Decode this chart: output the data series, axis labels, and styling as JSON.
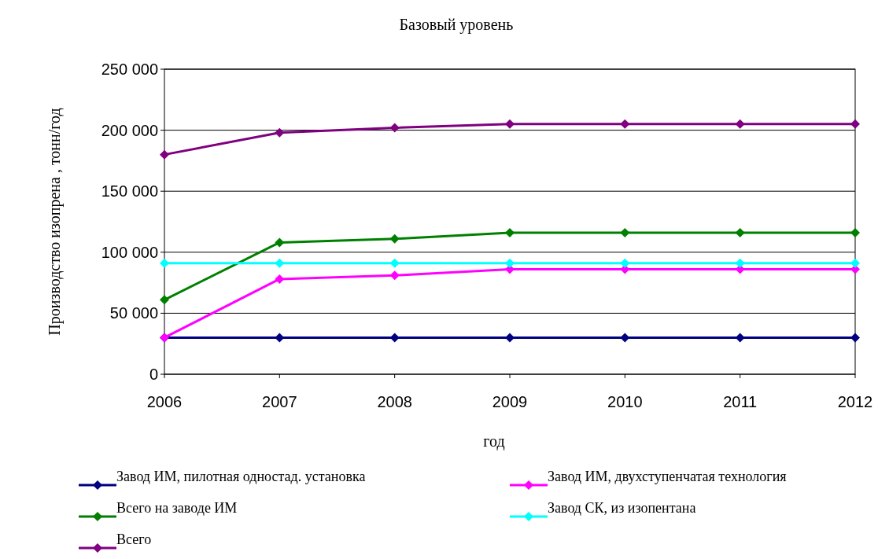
{
  "chart_data": {
    "type": "line",
    "title": "Базовый уровень",
    "xlabel": "год",
    "ylabel": "Производство изопрена , тонн/год",
    "x": [
      2006,
      2007,
      2008,
      2009,
      2010,
      2011,
      2012
    ],
    "xlim": [
      2006,
      2012
    ],
    "xticks": [
      2006,
      2007,
      2008,
      2009,
      2010,
      2011,
      2012
    ],
    "ylim": [
      0,
      250000
    ],
    "yticks": [
      {
        "value": 0,
        "label": "0"
      },
      {
        "value": 50000,
        "label": "50 000"
      },
      {
        "value": 100000,
        "label": "100 000"
      },
      {
        "value": 150000,
        "label": "150 000"
      },
      {
        "value": 200000,
        "label": "200 000"
      },
      {
        "value": 250000,
        "label": "250 000"
      }
    ],
    "grid": "y",
    "legend": "bottom",
    "marker": "diamond",
    "line_style": "solid",
    "series": [
      {
        "name": "Завод ИМ, пилотная одностад. установка",
        "color": "#000080",
        "values": [
          30000,
          30000,
          30000,
          30000,
          30000,
          30000,
          30000
        ]
      },
      {
        "name": "Завод ИМ, двухступенчатая технология",
        "color": "#ff00ff",
        "values": [
          30000,
          78000,
          81000,
          86000,
          86000,
          86000,
          86000
        ]
      },
      {
        "name": "Всего на заводе ИМ",
        "color": "#008000",
        "values": [
          61000,
          108000,
          111000,
          116000,
          116000,
          116000,
          116000
        ]
      },
      {
        "name": "Завод СК, из изопентана",
        "color": "#00ffff",
        "values": [
          91000,
          91000,
          91000,
          91000,
          91000,
          91000,
          91000
        ]
      },
      {
        "name": "Всего",
        "color": "#800080",
        "values": [
          180000,
          198000,
          202000,
          205000,
          205000,
          205000,
          205000
        ]
      }
    ]
  }
}
